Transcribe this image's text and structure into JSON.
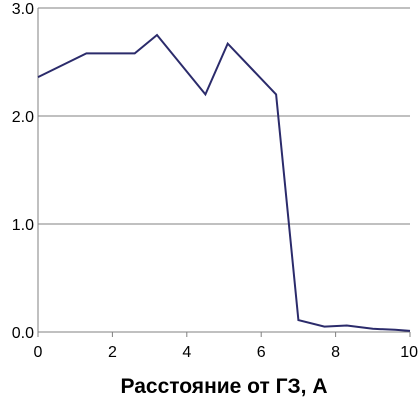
{
  "chart_data": {
    "type": "line",
    "title": "",
    "xlabel": "Расстояние от ГЗ, А",
    "ylabel": "",
    "xlim": [
      0,
      10
    ],
    "ylim": [
      0,
      3.0
    ],
    "x_ticks": [
      0,
      2,
      4,
      6,
      8,
      10
    ],
    "x_tick_labels": [
      "0",
      "2",
      "4",
      "6",
      "8",
      "10"
    ],
    "y_ticks": [
      0,
      1,
      2,
      3
    ],
    "y_tick_labels": [
      "0.0",
      "1.0",
      "2.0",
      "3.0"
    ],
    "grid": "horizontal",
    "legend": "none",
    "series": [
      {
        "x": [
          0,
          1.3,
          2.6,
          3.2,
          4.5,
          5.1,
          6.4,
          7.0,
          7.7,
          8.3,
          9.0,
          9.6,
          10.0
        ],
        "values": [
          2.36,
          2.58,
          2.58,
          2.75,
          2.2,
          2.67,
          2.2,
          0.11,
          0.05,
          0.06,
          0.03,
          0.02,
          0.01
        ],
        "color": "#2b2b6b"
      }
    ]
  }
}
